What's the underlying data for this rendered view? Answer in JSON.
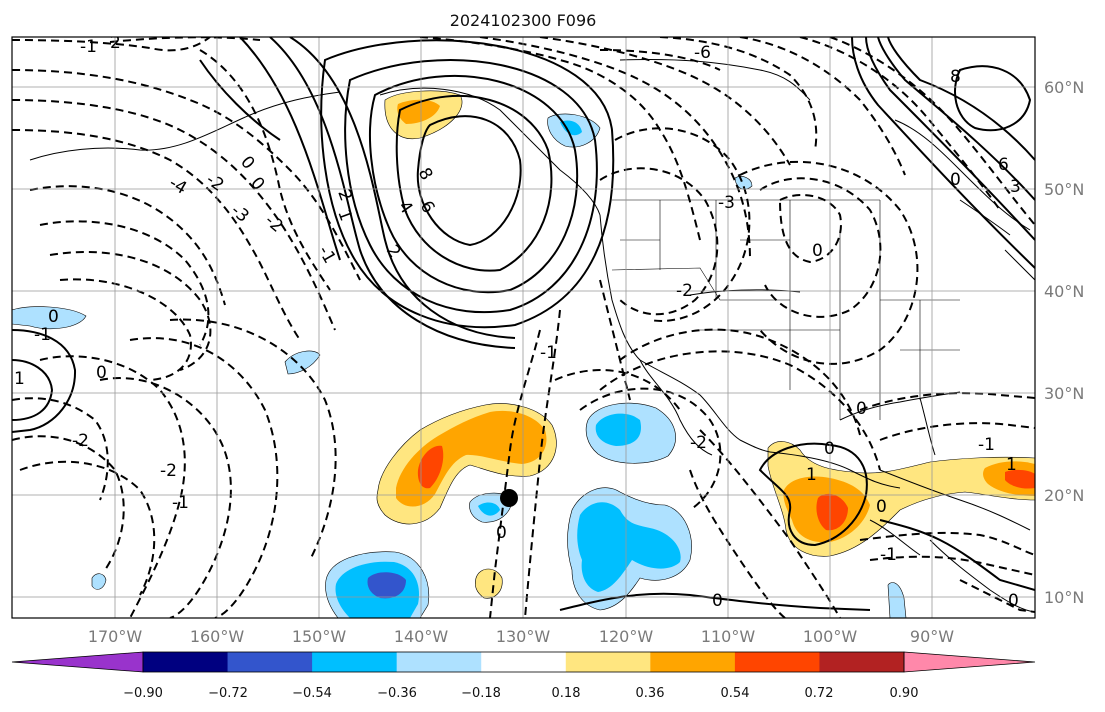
{
  "title": "2024102300 F096",
  "map": {
    "lon_range": [
      -180,
      -80
    ],
    "lat_range": [
      8,
      65
    ],
    "lat_labels": [
      "10°N",
      "20°N",
      "30°N",
      "40°N",
      "50°N",
      "60°N"
    ],
    "lat_values": [
      10,
      20,
      30,
      40,
      50,
      60
    ],
    "lon_labels": [
      "170°W",
      "160°W",
      "150°W",
      "140°W",
      "130°W",
      "120°W",
      "110°W",
      "100°W",
      "90°W"
    ],
    "lon_values": [
      -170,
      -160,
      -150,
      -140,
      -130,
      -120,
      -110,
      -100,
      -90
    ],
    "gridlines": true,
    "contour_labels": [
      "0",
      "1",
      "2",
      "-1",
      "-2",
      "-3",
      "-4",
      "-6",
      "4",
      "6",
      "8",
      "3"
    ],
    "marker": {
      "lon": -132,
      "lat": 20
    }
  },
  "colorbar": {
    "tick_labels": [
      "−0.90",
      "−0.72",
      "−0.54",
      "−0.36",
      "−0.18",
      "0.18",
      "0.36",
      "0.54",
      "0.72",
      "0.90"
    ],
    "colors": [
      "#9933cc",
      "#000080",
      "#3355cc",
      "#00bfff",
      "#aee1ff",
      "#ffffff",
      "#ffe680",
      "#ffa500",
      "#ff4500",
      "#b22222",
      "#ff88aa"
    ],
    "extend": "both"
  }
}
